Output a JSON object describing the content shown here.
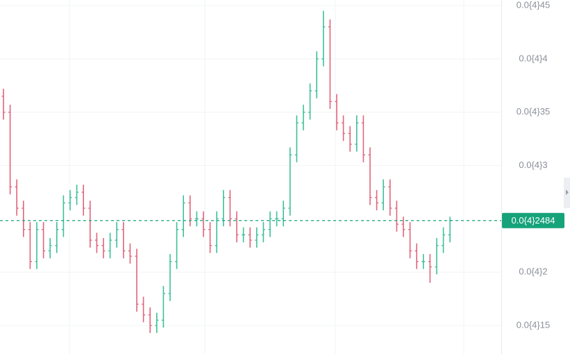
{
  "chart_data": {
    "type": "ohlc",
    "open": [
      3.65e-05,
      3.5e-05,
      2.8e-05,
      2.6e-05,
      2.4e-05,
      2.1e-05,
      2.4e-05,
      2.2e-05,
      2.25e-05,
      2.4e-05,
      2.65e-05,
      2.7e-05,
      2.75e-05,
      2.6e-05,
      2.3e-05,
      2.25e-05,
      2.2e-05,
      2.3e-05,
      2.4e-05,
      2.2e-05,
      2.15e-05,
      1.7e-05,
      1.6e-05,
      1.5e-05,
      1.55e-05,
      1.8e-05,
      2.1e-05,
      2.4e-05,
      2.65e-05,
      2.5e-05,
      2.5e-05,
      2.4e-05,
      2.25e-05,
      2.5e-05,
      2.7e-05,
      2.5e-05,
      2.35e-05,
      2.35e-05,
      2.3e-05,
      2.35e-05,
      2.4e-05,
      2.5e-05,
      2.5e-05,
      2.6e-05,
      3.1e-05,
      3.4e-05,
      3.5e-05,
      3.7e-05,
      4e-05,
      4.3e-05,
      3.6e-05,
      3.4e-05,
      3.3e-05,
      3.2e-05,
      3.4e-05,
      3.1e-05,
      2.7e-05,
      2.65e-05,
      2.8e-05,
      2.6e-05,
      2.45e-05,
      2.4e-05,
      2.2e-05,
      2.1e-05,
      2.1e-05,
      2.05e-05,
      2.25e-05,
      2.35e-05
    ],
    "high": [
      3.72e-05,
      3.57e-05,
      2.87e-05,
      2.67e-05,
      2.47e-05,
      2.47e-05,
      2.47e-05,
      2.32e-05,
      2.47e-05,
      2.72e-05,
      2.77e-05,
      2.82e-05,
      2.82e-05,
      2.67e-05,
      2.37e-05,
      2.32e-05,
      2.37e-05,
      2.47e-05,
      2.47e-05,
      2.27e-05,
      2.22e-05,
      1.77e-05,
      1.67e-05,
      1.62e-05,
      1.87e-05,
      2.17e-05,
      2.47e-05,
      2.72e-05,
      2.72e-05,
      2.57e-05,
      2.57e-05,
      2.47e-05,
      2.57e-05,
      2.77e-05,
      2.77e-05,
      2.57e-05,
      2.42e-05,
      2.42e-05,
      2.42e-05,
      2.47e-05,
      2.57e-05,
      2.57e-05,
      2.67e-05,
      3.17e-05,
      3.47e-05,
      3.57e-05,
      3.77e-05,
      4.07e-05,
      4.45e-05,
      4.37e-05,
      3.67e-05,
      3.47e-05,
      3.37e-05,
      3.47e-05,
      3.47e-05,
      3.17e-05,
      2.77e-05,
      2.87e-05,
      2.87e-05,
      2.67e-05,
      2.52e-05,
      2.47e-05,
      2.27e-05,
      2.17e-05,
      2.17e-05,
      2.32e-05,
      2.42e-05,
      2.52e-05
    ],
    "low": [
      3.43e-05,
      2.73e-05,
      2.53e-05,
      2.33e-05,
      2.03e-05,
      2.03e-05,
      2.13e-05,
      2.13e-05,
      2.18e-05,
      2.33e-05,
      2.58e-05,
      2.63e-05,
      2.53e-05,
      2.23e-05,
      2.18e-05,
      2.13e-05,
      2.13e-05,
      2.23e-05,
      2.13e-05,
      2.08e-05,
      1.63e-05,
      1.53e-05,
      1.43e-05,
      1.43e-05,
      1.48e-05,
      1.73e-05,
      2.03e-05,
      2.33e-05,
      2.43e-05,
      2.43e-05,
      2.33e-05,
      2.18e-05,
      2.18e-05,
      2.43e-05,
      2.43e-05,
      2.28e-05,
      2.28e-05,
      2.23e-05,
      2.23e-05,
      2.28e-05,
      2.33e-05,
      2.43e-05,
      2.43e-05,
      2.53e-05,
      3.03e-05,
      3.33e-05,
      3.43e-05,
      3.63e-05,
      3.93e-05,
      3.53e-05,
      3.33e-05,
      3.23e-05,
      3.13e-05,
      3.13e-05,
      3.03e-05,
      2.63e-05,
      2.58e-05,
      2.58e-05,
      2.53e-05,
      2.38e-05,
      2.33e-05,
      2.13e-05,
      2.03e-05,
      2.03e-05,
      1.9e-05,
      1.98e-05,
      2.18e-05,
      2.28e-05
    ],
    "close": [
      3.5e-05,
      2.8e-05,
      2.6e-05,
      2.4e-05,
      2.1e-05,
      2.4e-05,
      2.2e-05,
      2.25e-05,
      2.4e-05,
      2.65e-05,
      2.7e-05,
      2.75e-05,
      2.6e-05,
      2.3e-05,
      2.25e-05,
      2.2e-05,
      2.3e-05,
      2.4e-05,
      2.2e-05,
      2.15e-05,
      1.7e-05,
      1.6e-05,
      1.5e-05,
      1.55e-05,
      1.8e-05,
      2.1e-05,
      2.4e-05,
      2.65e-05,
      2.5e-05,
      2.5e-05,
      2.4e-05,
      2.25e-05,
      2.5e-05,
      2.7e-05,
      2.5e-05,
      2.35e-05,
      2.35e-05,
      2.3e-05,
      2.35e-05,
      2.4e-05,
      2.5e-05,
      2.5e-05,
      2.6e-05,
      3.1e-05,
      3.4e-05,
      3.5e-05,
      3.7e-05,
      4e-05,
      4.3e-05,
      3.6e-05,
      3.4e-05,
      3.3e-05,
      3.2e-05,
      3.4e-05,
      3.1e-05,
      2.7e-05,
      2.65e-05,
      2.8e-05,
      2.6e-05,
      2.45e-05,
      2.4e-05,
      2.2e-05,
      2.1e-05,
      2.1e-05,
      2.05e-05,
      2.25e-05,
      2.35e-05,
      2.484e-05
    ],
    "up_color": "#3dbf98",
    "down_color": "#e0647a",
    "ylim": [
      1.233e-05,
      4.552e-05
    ],
    "yticks": [
      {
        "value": 1.5e-05,
        "label": "0.0{4}15"
      },
      {
        "value": 2e-05,
        "label": "0.0{4}2"
      },
      {
        "value": 3e-05,
        "label": "0.0{4}3"
      },
      {
        "value": 3.5e-05,
        "label": "0.0{4}35"
      },
      {
        "value": 4e-05,
        "label": "0.0{4}4"
      },
      {
        "value": 4.5e-05,
        "label": "0.0{4}45"
      }
    ],
    "grid": true,
    "last_price": {
      "value": 2.484e-05,
      "label": "0.0{4}2484"
    }
  }
}
